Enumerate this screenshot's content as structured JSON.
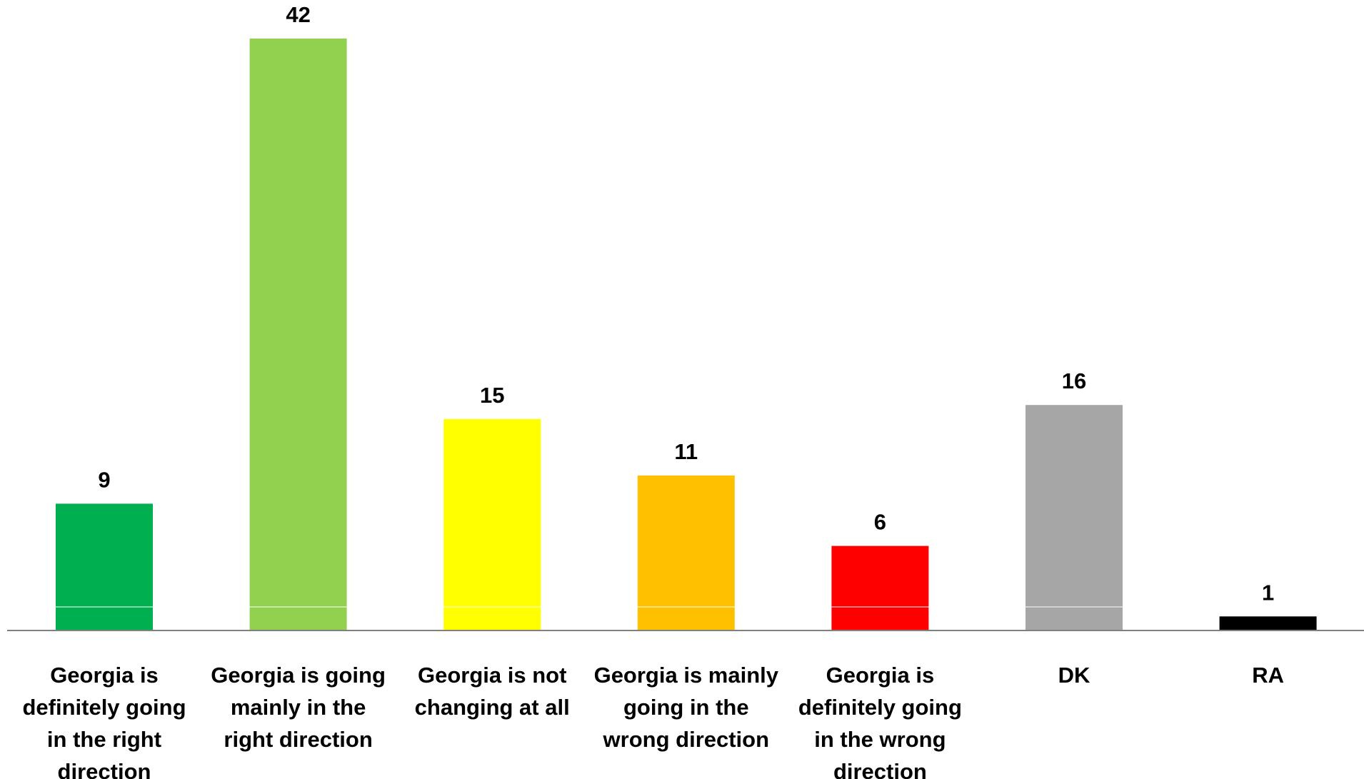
{
  "chart_data": {
    "type": "bar",
    "title": "",
    "xlabel": "",
    "ylabel": "",
    "ylim": [
      0,
      45
    ],
    "grid": false,
    "legend": "none",
    "categories": [
      [
        "Georgia is",
        "definitely going",
        "in the right",
        "direction"
      ],
      [
        "Georgia is going",
        "mainly in the",
        "right direction"
      ],
      [
        "Georgia is not",
        "changing at all"
      ],
      [
        "Georgia is mainly",
        "going in the",
        "wrong direction"
      ],
      [
        "Georgia is",
        "definitely going",
        "in the wrong",
        "direction"
      ],
      [
        "DK"
      ],
      [
        "RA"
      ]
    ],
    "values": [
      9,
      42,
      15,
      11,
      6,
      16,
      1
    ],
    "colors": [
      "#00B050",
      "#92D050",
      "#FFFF00",
      "#FFC000",
      "#FF0000",
      "#A6A6A6",
      "#000000"
    ],
    "axis_color": "#808080",
    "baseline_rule_color": "#FFFFFF"
  }
}
